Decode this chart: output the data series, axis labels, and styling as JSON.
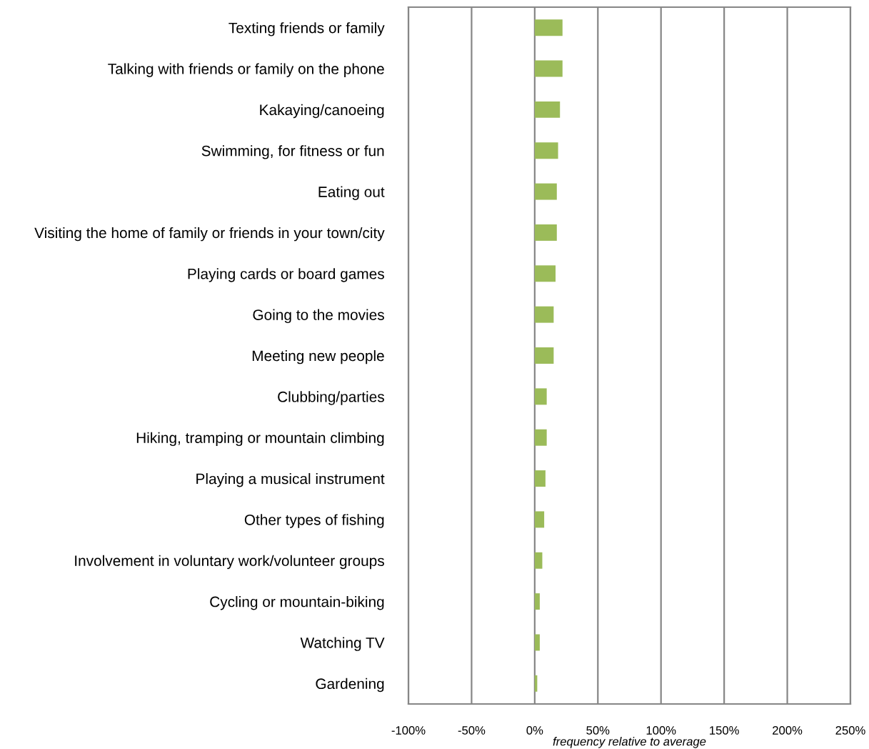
{
  "chart_data": {
    "type": "bar",
    "orientation": "horizontal",
    "xlabel": "frequency relative to average",
    "categories": [
      "Texting friends or family",
      "Talking with friends or family on the phone",
      "Kakaying/canoeing",
      "Swimming, for fitness or fun",
      "Eating out",
      "Visiting the home of family or friends in your town/city",
      "Playing cards or board games",
      "Going to the movies",
      "Meeting new people",
      "Clubbing/parties",
      "Hiking, tramping or mountain climbing",
      "Playing a musical instrument",
      "Other types of fishing",
      "Involvement in voluntary work/volunteer groups",
      "Cycling or mountain-biking",
      "Watching TV",
      "Gardening"
    ],
    "values": [
      22,
      22,
      20,
      18.5,
      17.5,
      17.5,
      16.5,
      15,
      15,
      9.5,
      9.5,
      8.5,
      7.5,
      6,
      4,
      4,
      2
    ],
    "color": "#9bbb59",
    "xlim": [
      -100,
      250
    ],
    "xticks": [
      {
        "value": -100,
        "label": "-100%"
      },
      {
        "value": -50,
        "label": "-50%"
      },
      {
        "value": 0,
        "label": "0%"
      },
      {
        "value": 50,
        "label": "50%"
      },
      {
        "value": 100,
        "label": "100%"
      },
      {
        "value": 150,
        "label": "150%"
      },
      {
        "value": 200,
        "label": "200%"
      },
      {
        "value": 250,
        "label": "250%"
      }
    ],
    "grid": "x",
    "legend": false
  }
}
